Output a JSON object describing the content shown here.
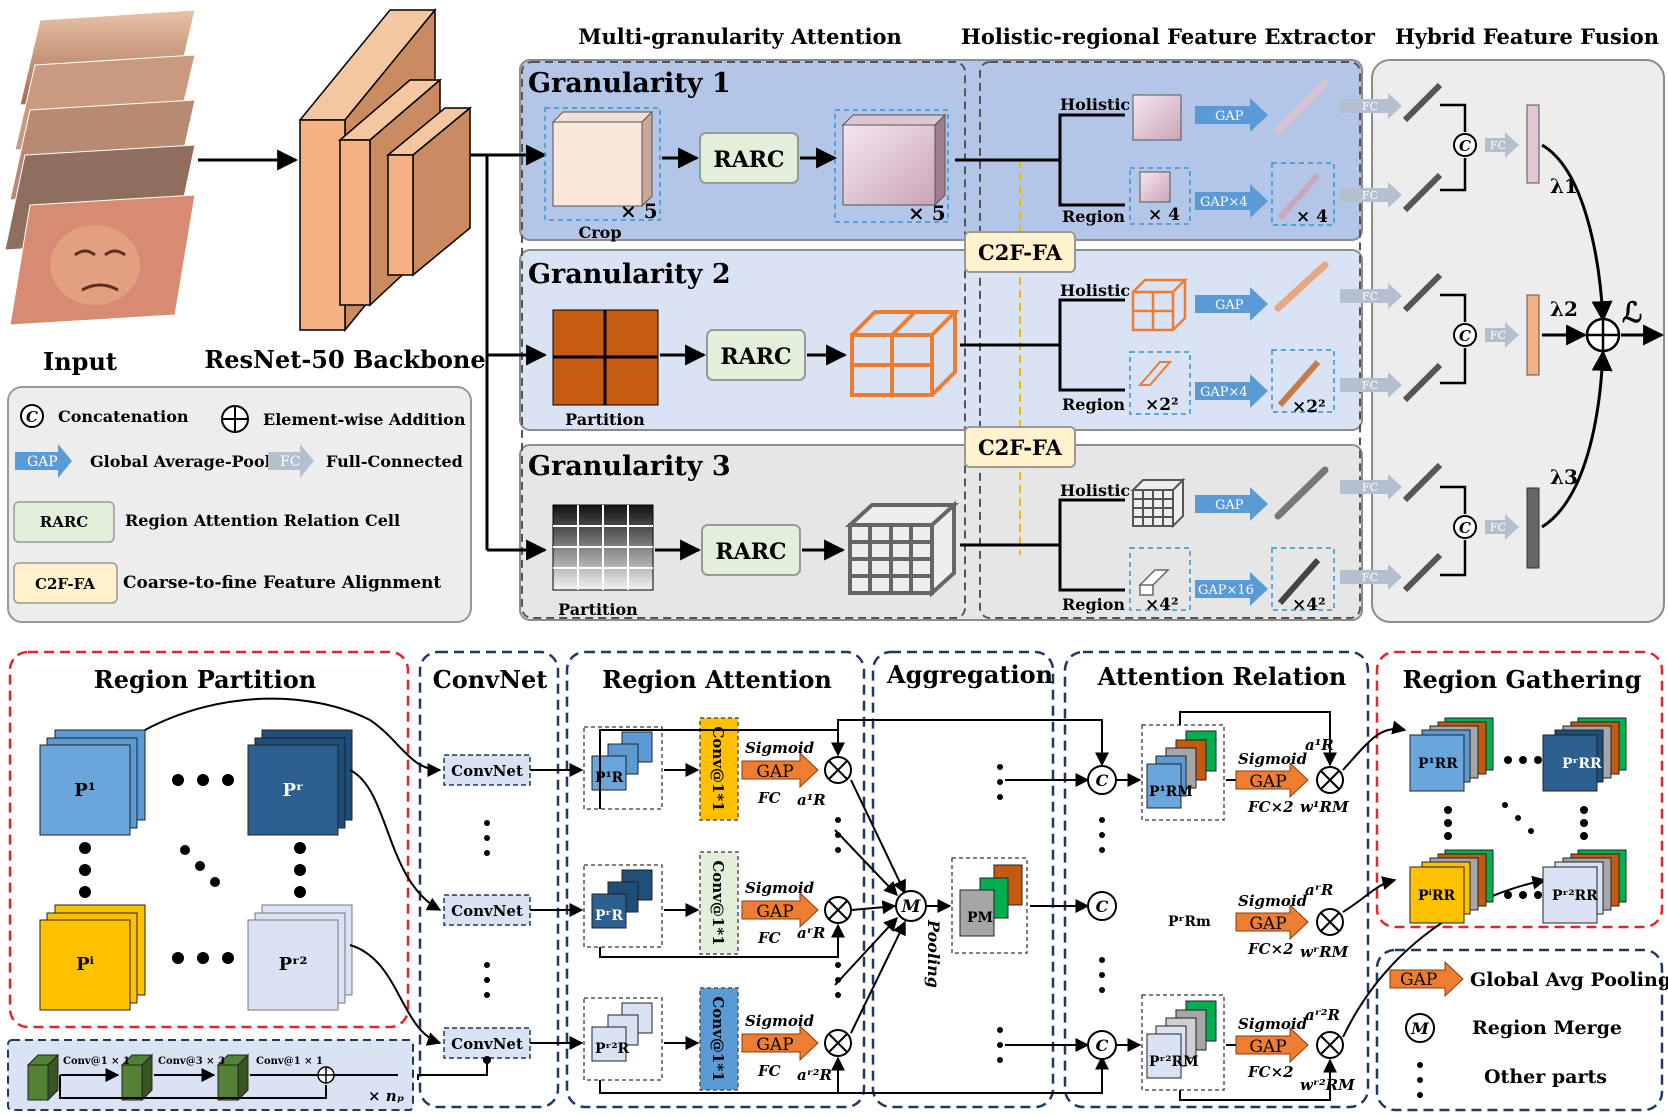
{
  "top": {
    "input_label": "Input",
    "backbone_label": "ResNet-50 Backbone",
    "headers": {
      "mga": "Multi-granularity Attention",
      "hrfe": "Holistic-regional Feature Extractor",
      "hff": "Hybrid Feature Fusion"
    },
    "granularities": [
      {
        "title": "Granularity 1",
        "op_label": "Crop",
        "rarc": "RARC",
        "mult_a": "× 5",
        "mult_b": "× 5",
        "holistic": "Holistic",
        "region": "Region",
        "gap": "GAP",
        "gap_sub": "GAP×4",
        "region_mult": "× 4",
        "vec_mult": "× 4",
        "lambda": "λ1"
      },
      {
        "title": "Granularity 2",
        "op_label": "Partition",
        "rarc": "RARC",
        "holistic": "Holistic",
        "region": "Region",
        "gap": "GAP",
        "gap_sub": "GAP×4",
        "region_mult": "×2²",
        "vec_mult": "×2²",
        "lambda": "λ2"
      },
      {
        "title": "Granularity 3",
        "op_label": "Partition",
        "rarc": "RARC",
        "holistic": "Holistic",
        "region": "Region",
        "gap": "GAP",
        "gap_sub": "GAP×16",
        "region_mult": "×4²",
        "vec_mult": "×4²",
        "lambda": "λ3"
      }
    ],
    "c2f": "C2F-FA",
    "fc": "FC",
    "concat_symbol": "C",
    "loss": "ℒ",
    "legend": {
      "concat": "Concatenation",
      "add": "Element-wise Addition",
      "gap_tag": "GAP",
      "gap": "Global Average-Pool",
      "fc_tag": "FC",
      "fc": "Full-Connected",
      "rarc_tag": "RARC",
      "rarc": "Region Attention Relation Cell",
      "c2f_tag": "C2F-FA",
      "c2f": "Coarse-to-fine Feature Alignment"
    }
  },
  "bottom": {
    "headers": {
      "rp": "Region Partition",
      "cn": "ConvNet",
      "ra": "Region Attention",
      "ag": "Aggregation",
      "ar": "Attention Relation",
      "rg": "Region Gathering"
    },
    "patches": {
      "p1": "P¹",
      "pr": "Pʳ",
      "pi": "Pⁱ",
      "pr2": "Pʳ²"
    },
    "convnet": "ConvNet",
    "conv11": "Conv@1*1",
    "sigmoid": "Sigmoid",
    "gap": "GAP",
    "fc": "FC",
    "fc2": "FC×2",
    "ra_labels": [
      "P¹R",
      "PʳR",
      "Pʳ²R"
    ],
    "ra_weights": [
      "a¹R",
      "aʳR",
      "aʳ²R"
    ],
    "merge": "M",
    "pooling": "Pooling",
    "pm": "PM",
    "ar_labels": [
      "P¹RM",
      "PʳRm",
      "Pʳ²RM"
    ],
    "ar_a": [
      "a¹R",
      "aʳR",
      "aʳ²R"
    ],
    "ar_w": [
      "w¹RM",
      "wʳRM",
      "wʳ²RM"
    ],
    "rg_labels": [
      "P¹RR",
      "PʳRR",
      "PⁱRR",
      "Pʳ²RR"
    ],
    "residual": {
      "c1": "Conv@1 × 1",
      "c3": "Conv@3 × 3",
      "c1b": "Conv@1 × 1",
      "np": "× nₚ"
    },
    "legend": {
      "gap_tag": "GAP",
      "gap": "Global Avg Pooling",
      "merge": "Region Merge",
      "other": "Other parts"
    }
  },
  "colors": {
    "g1_bg": "#b4c6e7",
    "g2_bg": "#dae3f3",
    "g3_bg": "#e7e6e6",
    "rarc_fill": "#e2efda",
    "c2f_fill": "#fff2cc",
    "gap_arrow": "#5b9bd5",
    "orange": "#ed7d31",
    "red_dash": "#e0262b",
    "navy_dash": "#203864"
  }
}
